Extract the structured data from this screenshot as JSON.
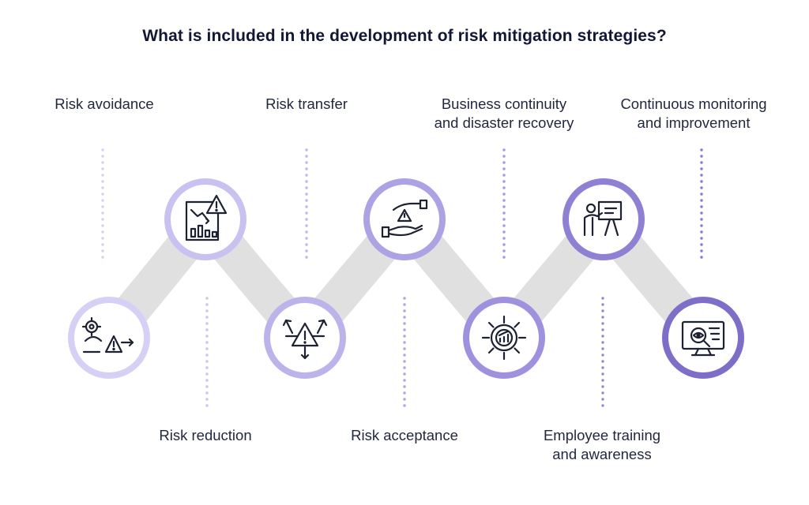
{
  "title": "What is included in the development of risk mitigation strategies?",
  "colors": {
    "connector": "#e0e0e0",
    "dots": [
      "#d7d2f3",
      "#cbc4f0",
      "#beb5ec",
      "#b1a5e6",
      "#a596e0",
      "#9687d8",
      "#8777cf",
      "#7665c4"
    ],
    "rings": [
      "#d6d1f4",
      "#c9c2f0",
      "#bcb3eb",
      "#ada2e4",
      "#9f91dd",
      "#8f80d3",
      "#7f6ec8",
      "#6e5cbb"
    ],
    "icon": "#1d2233",
    "accent": "#7a6bc9"
  },
  "steps": [
    {
      "label_lines": [
        "Risk avoidance"
      ],
      "icon": "gear-warning-path-icon"
    },
    {
      "label_lines": [
        "Risk reduction"
      ],
      "icon": "decline-report-warning-icon"
    },
    {
      "label_lines": [
        "Risk transfer"
      ],
      "icon": "warning-exit-arrows-icon"
    },
    {
      "label_lines": [
        "Risk acceptance"
      ],
      "icon": "hands-warning-icon"
    },
    {
      "label_lines": [
        "Business continuity",
        "and disaster recovery"
      ],
      "icon": "gear-chart-icon"
    },
    {
      "label_lines": [
        "Employee training",
        "and awareness"
      ],
      "icon": "presentation-trainer-icon"
    },
    {
      "label_lines": [
        "Continuous monitoring",
        "and improvement"
      ],
      "icon": "monitor-eye-icon"
    }
  ]
}
